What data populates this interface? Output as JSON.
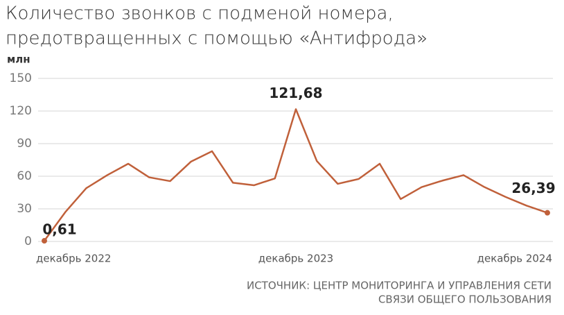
{
  "chart_data": {
    "type": "line",
    "title": [
      "Количество звонков с подменой номера,",
      "предотвращенных с помощью «Антифрода»"
    ],
    "y_label": "млн",
    "source": [
      "ИСТОЧНИК: ЦЕНТР МОНИТОРИНГА И УПРАВЛЕНИЯ СЕТИ",
      "СВЯЗИ ОБЩЕГО ПОЛЬЗОВАНИЯ"
    ],
    "categories": [
      "декабрь 2022",
      null,
      null,
      null,
      null,
      null,
      null,
      null,
      null,
      null,
      null,
      null,
      "декабрь 2023",
      null,
      null,
      null,
      null,
      null,
      null,
      null,
      null,
      null,
      null,
      null,
      "декабрь 2024"
    ],
    "series": [
      {
        "name": null,
        "color": "#c0603a",
        "values": [
          0.61,
          27,
          49,
          61,
          71.5,
          59,
          55.5,
          73.5,
          83,
          54,
          51.7,
          58,
          121.68,
          74,
          53,
          57.5,
          71.5,
          39,
          50,
          56,
          61,
          50,
          41,
          33,
          26.39
        ],
        "value_labels": [
          "0,61",
          null,
          null,
          null,
          null,
          null,
          null,
          null,
          null,
          null,
          null,
          null,
          "121,68",
          null,
          null,
          null,
          null,
          null,
          null,
          null,
          null,
          null,
          null,
          null,
          "26,39"
        ]
      }
    ],
    "ylim": [
      0,
      150
    ],
    "yticks": [
      0,
      30,
      60,
      90,
      120,
      150
    ],
    "grid": true
  }
}
